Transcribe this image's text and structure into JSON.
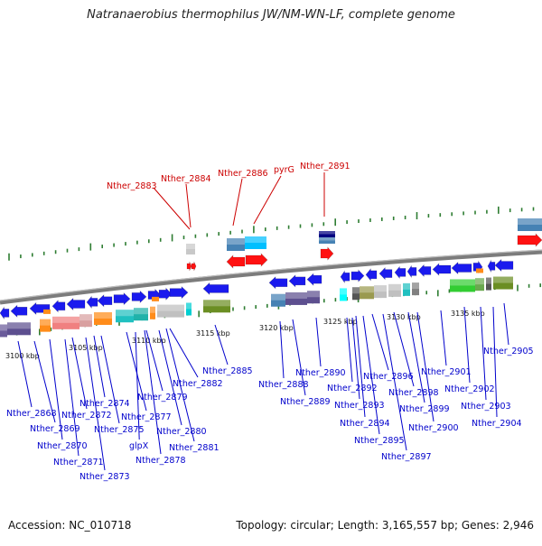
{
  "title": "Natranaerobius thermophilus JW/NM-WN-LF, complete genome",
  "footer": {
    "accession": "Accession: NC_010718",
    "summary": "Topology: circular; Length: 3,165,557 bp; Genes: 2,946"
  },
  "colors": {
    "label_upper": "#cc0000",
    "label_lower": "#0000cc",
    "tick": "#2e7d32",
    "backbone": "#8a8a8a",
    "gene_blue": "#1a1aee"
  },
  "axis": {
    "unit": "kbp",
    "scale_labels": [
      "3100 kbp",
      "3105 kbp",
      "3110 kbp",
      "3115 kbp",
      "3120 kbp",
      "3125 kbp",
      "3130 kbp",
      "3135 kbp"
    ]
  },
  "upper_labels": [
    "Nther_2883",
    "Nther_2884",
    "Nther_2886",
    "pyrG",
    "Nther_2891"
  ],
  "lower_labels": [
    "Nther_2868",
    "Nther_2869",
    "Nther_2870",
    "Nther_2871",
    "Nther_2872",
    "Nther_2873",
    "Nther_2874",
    "Nther_2875",
    "Nther_2877",
    "glpX",
    "Nther_2878",
    "Nther_2879",
    "Nther_2880",
    "Nther_2881",
    "Nther_2882",
    "Nther_2885",
    "Nther_2888",
    "Nther_2889",
    "Nther_2890",
    "Nther_2892",
    "Nther_2893",
    "Nther_2894",
    "Nther_2895",
    "Nther_2896",
    "Nther_2897",
    "Nther_2898",
    "Nther_2899",
    "Nther_2900",
    "Nther_2901",
    "Nther_2902",
    "Nther_2903",
    "Nther_2904",
    "Nther_2905"
  ]
}
